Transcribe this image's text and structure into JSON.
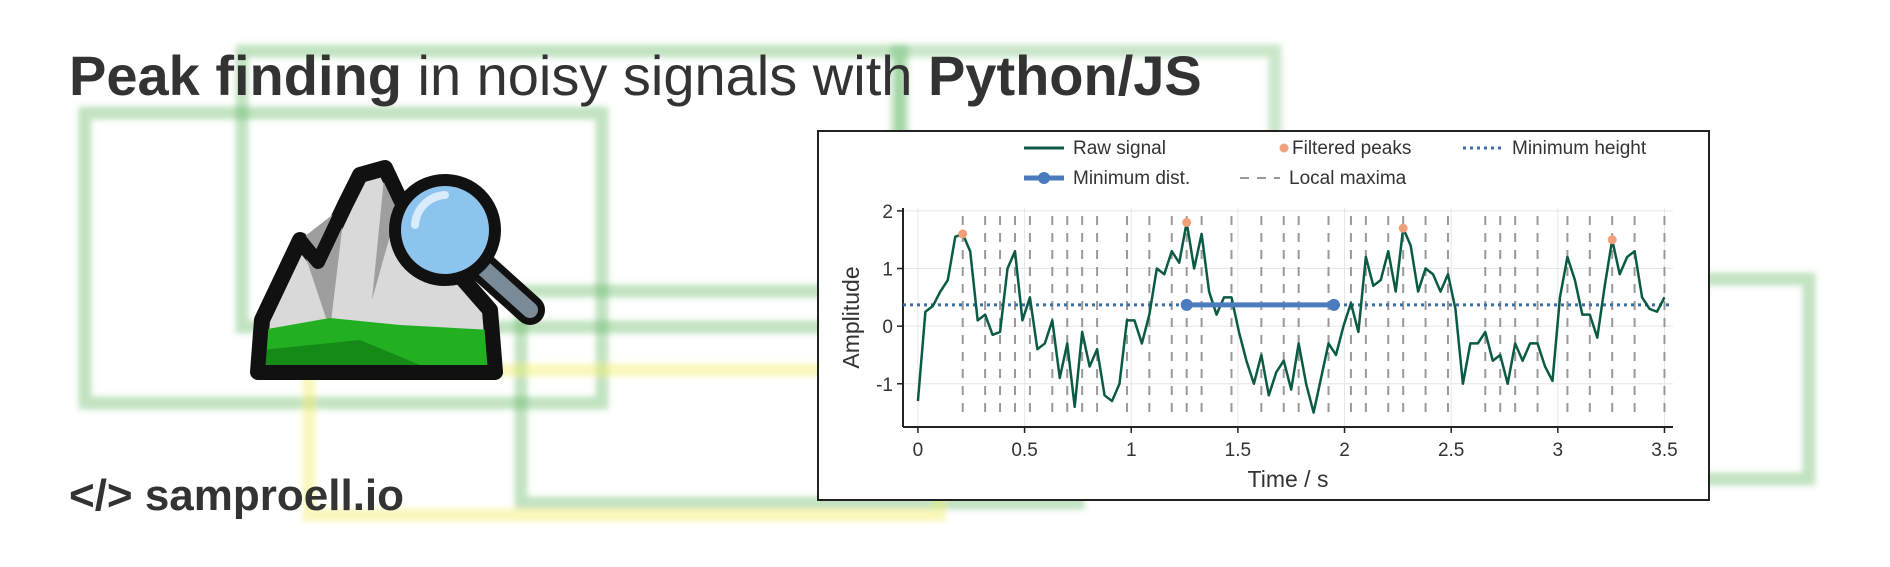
{
  "header": {
    "title": {
      "bold_start": "Peak finding",
      "middle": " in noisy signals with ",
      "bold_end": "Python/JS"
    }
  },
  "footer": {
    "site": "</> samproell.io"
  },
  "chart_data": {
    "type": "line",
    "xlabel": "Time / s",
    "ylabel": "Amplitude",
    "xlim": [
      -0.07,
      3.54
    ],
    "ylim": [
      -1.75,
      2.05
    ],
    "xticks": [
      0,
      0.5,
      1,
      1.5,
      2,
      2.5,
      3,
      3.5
    ],
    "yticks": [
      -1,
      0,
      1,
      2
    ],
    "grid": true,
    "series": [
      {
        "name": "Raw signal",
        "style": "line",
        "color": "#0b5a45",
        "x": [
          0,
          0.035,
          0.07,
          0.105,
          0.14,
          0.175,
          0.21,
          0.245,
          0.28,
          0.315,
          0.35,
          0.385,
          0.42,
          0.455,
          0.49,
          0.525,
          0.56,
          0.595,
          0.63,
          0.665,
          0.7,
          0.735,
          0.77,
          0.805,
          0.84,
          0.875,
          0.91,
          0.945,
          0.98,
          1.015,
          1.05,
          1.085,
          1.12,
          1.155,
          1.19,
          1.225,
          1.26,
          1.295,
          1.33,
          1.365,
          1.4,
          1.435,
          1.47,
          1.505,
          1.54,
          1.575,
          1.61,
          1.645,
          1.68,
          1.715,
          1.75,
          1.785,
          1.82,
          1.855,
          1.89,
          1.925,
          1.96,
          1.995,
          2.03,
          2.065,
          2.1,
          2.135,
          2.17,
          2.205,
          2.24,
          2.275,
          2.31,
          2.345,
          2.38,
          2.415,
          2.45,
          2.485,
          2.52,
          2.555,
          2.59,
          2.625,
          2.66,
          2.695,
          2.73,
          2.765,
          2.8,
          2.835,
          2.87,
          2.905,
          2.94,
          2.975,
          3.01,
          3.045,
          3.08,
          3.115,
          3.15,
          3.185,
          3.22,
          3.255,
          3.29,
          3.325,
          3.36,
          3.395,
          3.43,
          3.465,
          3.5
        ],
        "values": [
          -1.3,
          0.25,
          0.35,
          0.6,
          0.8,
          1.55,
          1.6,
          1.3,
          0.1,
          0.2,
          -0.15,
          -0.1,
          1.0,
          1.3,
          0.1,
          0.5,
          -0.4,
          -0.3,
          0.1,
          -0.9,
          -0.3,
          -1.4,
          -0.1,
          -0.7,
          -0.4,
          -1.2,
          -1.3,
          -1.0,
          0.1,
          0.1,
          -0.3,
          0.2,
          1.0,
          0.9,
          1.3,
          1.1,
          1.8,
          1.0,
          1.6,
          0.6,
          0.2,
          0.5,
          0.5,
          -0.1,
          -0.6,
          -1.0,
          -0.5,
          -1.2,
          -0.8,
          -0.6,
          -1.1,
          -0.3,
          -1.0,
          -1.5,
          -0.9,
          -0.3,
          -0.5,
          0.0,
          0.4,
          -0.1,
          1.2,
          0.7,
          0.8,
          1.3,
          0.6,
          1.7,
          1.4,
          0.6,
          1.0,
          0.9,
          0.6,
          0.9,
          0.3,
          -1.0,
          -0.3,
          -0.3,
          -0.1,
          -0.6,
          -0.5,
          -1.0,
          -0.3,
          -0.6,
          -0.3,
          -0.3,
          -0.7,
          -0.95,
          0.5,
          1.2,
          0.8,
          0.2,
          0.2,
          -0.2,
          0.7,
          1.5,
          0.9,
          1.2,
          1.3,
          0.5,
          0.3,
          0.25,
          0.5
        ]
      },
      {
        "name": "Filtered peaks",
        "style": "markers",
        "color": "#f0a07a",
        "x": [
          0.21,
          1.26,
          2.275,
          3.255
        ],
        "values": [
          1.6,
          1.8,
          1.7,
          1.5
        ]
      },
      {
        "name": "Minimum height",
        "style": "hline",
        "color": "#3a6ea5",
        "value": 0.37
      },
      {
        "name": "Minimum dist.",
        "style": "segment",
        "color": "#4a7bbf",
        "x": [
          1.26,
          1.95
        ],
        "values": [
          0.37,
          0.37
        ]
      },
      {
        "name": "Local maxima",
        "style": "vlines",
        "color": "#999999",
        "x": [
          0.21,
          0.315,
          0.385,
          0.455,
          0.525,
          0.63,
          0.7,
          0.77,
          0.84,
          0.98,
          1.085,
          1.19,
          1.26,
          1.33,
          1.47,
          1.61,
          1.715,
          1.785,
          1.925,
          2.03,
          2.1,
          2.205,
          2.275,
          2.38,
          2.485,
          2.66,
          2.73,
          2.8,
          2.905,
          3.045,
          3.15,
          3.255,
          3.36,
          3.5
        ]
      }
    ]
  }
}
